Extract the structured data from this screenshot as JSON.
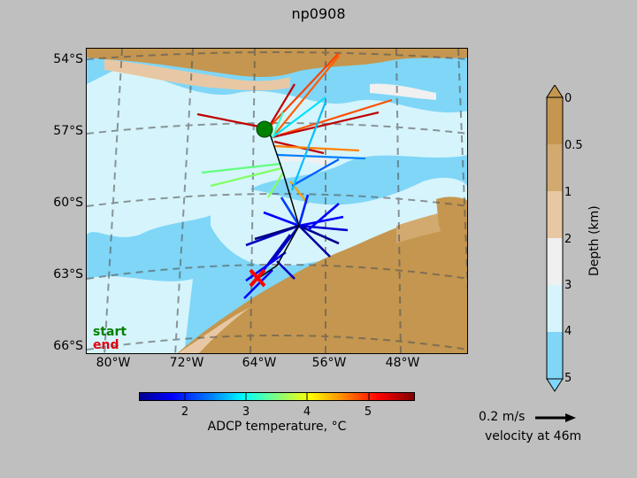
{
  "title": "np0908",
  "map": {
    "lat_labels": [
      "54°S",
      "57°S",
      "60°S",
      "63°S",
      "66°S"
    ],
    "lon_labels": [
      "80°W",
      "72°W",
      "64°W",
      "56°W",
      "48°W"
    ],
    "legend": {
      "start": "start",
      "end": "end"
    },
    "start_color": "#008000",
    "end_color": "#ff0000"
  },
  "temp_colorbar": {
    "ticks": [
      "2",
      "3",
      "4",
      "5"
    ],
    "label": "ADCP temperature, °C"
  },
  "depth_colorbar": {
    "ticks": [
      "0",
      "0.5",
      "1",
      "2",
      "3",
      "4",
      "5"
    ],
    "label": "Depth (km)",
    "colors": [
      "#c4964f",
      "#d2aa70",
      "#e8c8a4",
      "#f0f0f0",
      "#d6f4fc",
      "#7fd6f7"
    ]
  },
  "velocity_key": {
    "label": "0.2 m/s",
    "sublabel": "velocity at 46m"
  }
}
